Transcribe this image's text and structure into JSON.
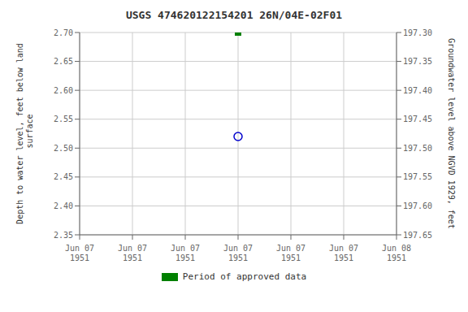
{
  "chart_data": {
    "type": "scatter",
    "title": "USGS 474620122154201 26N/04E-02F01",
    "y_label": "Depth to water level, feet below land\n surface",
    "y2_label": "Groundwater level above NGVD 1929, feet",
    "categories": [
      "Jun 07\n1951",
      "Jun 07\n1951",
      "Jun 07\n1951",
      "Jun 07\n1951",
      "Jun 07\n1951",
      "Jun 07\n1951",
      "Jun 08\n1951"
    ],
    "series": [
      {
        "color": "#0000cc",
        "marker": "open_circle",
        "values": [
          null,
          null,
          null,
          2.52,
          null,
          null,
          null
        ]
      },
      {
        "name": "Period of approved data",
        "color": "#008000",
        "marker": "square",
        "values": [
          null,
          null,
          null,
          2.7,
          null,
          null,
          null
        ]
      }
    ],
    "ylim": [
      2.35,
      2.7
    ],
    "yticks": [
      {
        "value": 2.35,
        "label": "2.35"
      },
      {
        "value": 2.4,
        "label": "2.40"
      },
      {
        "value": 2.45,
        "label": "2.45"
      },
      {
        "value": 2.5,
        "label": "2.50"
      },
      {
        "value": 2.55,
        "label": "2.55"
      },
      {
        "value": 2.6,
        "label": "2.60"
      },
      {
        "value": 2.65,
        "label": "2.65"
      },
      {
        "value": 2.7,
        "label": "2.70"
      }
    ],
    "y2lim": [
      197.65,
      197.3
    ],
    "y2ticks": [
      {
        "value": 197.65,
        "label": "197.65"
      },
      {
        "value": 197.6,
        "label": "197.60"
      },
      {
        "value": 197.55,
        "label": "197.55"
      },
      {
        "value": 197.5,
        "label": "197.50"
      },
      {
        "value": 197.45,
        "label": "197.45"
      },
      {
        "value": 197.4,
        "label": "197.40"
      },
      {
        "value": 197.35,
        "label": "197.35"
      },
      {
        "value": 197.3,
        "label": "197.30"
      }
    ],
    "grid": true,
    "legend": "bottom"
  }
}
